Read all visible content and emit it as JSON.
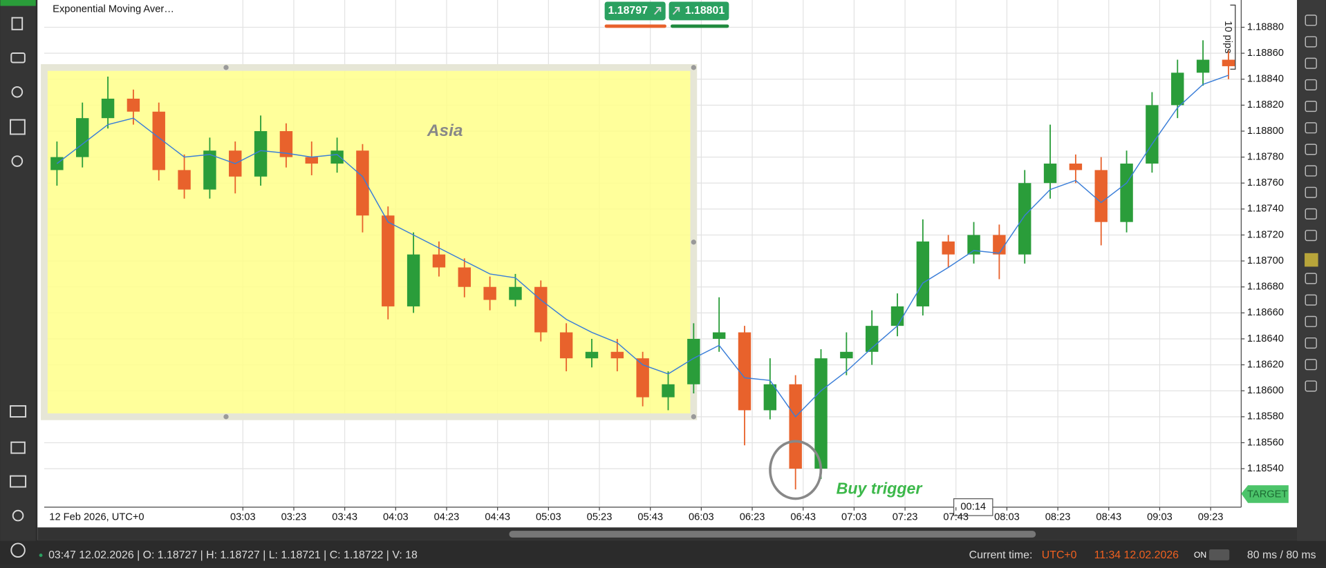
{
  "chart_data": {
    "type": "candlestick",
    "indicator_label": "Exponential Moving Aver…",
    "date_label": "12 Feb 2026, UTC+0",
    "x": [
      "01:50",
      "02:00",
      "02:10",
      "02:20",
      "02:30",
      "02:40",
      "02:50",
      "03:00",
      "03:10",
      "03:20",
      "03:30",
      "03:40",
      "03:50",
      "04:00",
      "04:10",
      "04:20",
      "04:30",
      "04:40",
      "04:50",
      "05:00",
      "05:10",
      "05:20",
      "05:30",
      "05:40",
      "05:50",
      "06:00",
      "06:10",
      "06:20",
      "06:30",
      "06:40",
      "06:50",
      "07:00",
      "07:10",
      "07:20",
      "07:30",
      "07:40",
      "07:50",
      "08:00",
      "08:10",
      "08:20",
      "08:30",
      "08:40",
      "08:50",
      "09:00",
      "09:10",
      "09:20",
      "09:30"
    ],
    "open": [
      1.1877,
      1.1878,
      1.1881,
      1.18825,
      1.18815,
      1.1877,
      1.18755,
      1.18785,
      1.18765,
      1.188,
      1.1878,
      1.18775,
      1.18785,
      1.18735,
      1.18665,
      1.18705,
      1.18695,
      1.1868,
      1.1867,
      1.1868,
      1.18645,
      1.18625,
      1.1863,
      1.18625,
      1.18595,
      1.18605,
      1.1864,
      1.18645,
      1.18585,
      1.18605,
      1.1854,
      1.18625,
      1.1863,
      1.1865,
      1.18665,
      1.18715,
      1.18705,
      1.1872,
      1.18705,
      1.1876,
      1.18775,
      1.1877,
      1.1873,
      1.18775,
      1.1882,
      1.18845,
      1.18855
    ],
    "high": [
      1.18792,
      1.18822,
      1.18842,
      1.18832,
      1.18822,
      1.18782,
      1.18795,
      1.18792,
      1.18812,
      1.18806,
      1.18792,
      1.18795,
      1.1879,
      1.18742,
      1.18722,
      1.18715,
      1.18702,
      1.18688,
      1.1869,
      1.18685,
      1.18652,
      1.1864,
      1.1864,
      1.1863,
      1.18615,
      1.18652,
      1.18672,
      1.1865,
      1.18625,
      1.18612,
      1.18632,
      1.18645,
      1.18662,
      1.18675,
      1.18732,
      1.1872,
      1.1873,
      1.18728,
      1.1877,
      1.18805,
      1.18782,
      1.1878,
      1.18785,
      1.1883,
      1.18855,
      1.1887,
      1.18862
    ],
    "low": [
      1.18758,
      1.18772,
      1.18802,
      1.18805,
      1.18762,
      1.18748,
      1.18748,
      1.18752,
      1.18758,
      1.18772,
      1.18766,
      1.18768,
      1.18722,
      1.18655,
      1.1866,
      1.18688,
      1.18672,
      1.18662,
      1.18665,
      1.18638,
      1.18615,
      1.18618,
      1.18615,
      1.18588,
      1.18585,
      1.18598,
      1.1863,
      1.18558,
      1.18578,
      1.18524,
      1.18532,
      1.18612,
      1.1862,
      1.18642,
      1.18658,
      1.18695,
      1.18698,
      1.18686,
      1.18698,
      1.18748,
      1.1876,
      1.18712,
      1.18722,
      1.18768,
      1.1881,
      1.18835,
      1.1884
    ],
    "close": [
      1.1878,
      1.1881,
      1.18825,
      1.18815,
      1.1877,
      1.18755,
      1.18785,
      1.18765,
      1.188,
      1.1878,
      1.18775,
      1.18785,
      1.18735,
      1.18665,
      1.18705,
      1.18695,
      1.1868,
      1.1867,
      1.1868,
      1.18645,
      1.18625,
      1.1863,
      1.18625,
      1.18595,
      1.18605,
      1.1864,
      1.18645,
      1.18585,
      1.18605,
      1.1854,
      1.18625,
      1.1863,
      1.1865,
      1.18665,
      1.18715,
      1.18705,
      1.1872,
      1.18705,
      1.1876,
      1.18775,
      1.1877,
      1.1873,
      1.18775,
      1.1882,
      1.18845,
      1.18855,
      1.1885
    ],
    "up_color": "#2a9d3a",
    "down_color": "#e8622c",
    "ema": {
      "color": "#3a7ed8",
      "values": [
        1.18775,
        1.1879,
        1.18805,
        1.1881,
        1.18795,
        1.1878,
        1.18782,
        1.18775,
        1.18785,
        1.18783,
        1.1878,
        1.18782,
        1.18765,
        1.1873,
        1.1872,
        1.1871,
        1.187,
        1.1869,
        1.18687,
        1.1867,
        1.18655,
        1.18645,
        1.18637,
        1.1862,
        1.18613,
        1.18625,
        1.18635,
        1.1861,
        1.18608,
        1.1858,
        1.186,
        1.18615,
        1.18633,
        1.1865,
        1.18683,
        1.18695,
        1.18708,
        1.18706,
        1.18735,
        1.18755,
        1.18762,
        1.18745,
        1.1876,
        1.1879,
        1.18818,
        1.18836,
        1.18843
      ]
    },
    "xlim": [
      "01:45",
      "09:35"
    ],
    "xticks": [
      "03:03",
      "03:23",
      "03:43",
      "04:03",
      "04:23",
      "04:43",
      "05:03",
      "05:23",
      "05:43",
      "06:03",
      "06:23",
      "06:43",
      "07:03",
      "07:23",
      "07:43",
      "08:03",
      "08:23",
      "08:43",
      "09:03",
      "09:23"
    ],
    "ylim": [
      1.18511,
      1.18901
    ],
    "yticks": [
      {
        "value": 1.1854,
        "label": "1.18540"
      },
      {
        "value": 1.1856,
        "label": "1.18560"
      },
      {
        "value": 1.1858,
        "label": "1.18580"
      },
      {
        "value": 1.186,
        "label": "1.18600"
      },
      {
        "value": 1.1862,
        "label": "1.18620"
      },
      {
        "value": 1.1864,
        "label": "1.18640"
      },
      {
        "value": 1.1866,
        "label": "1.18660"
      },
      {
        "value": 1.1868,
        "label": "1.18680"
      },
      {
        "value": 1.187,
        "label": "1.18700"
      },
      {
        "value": 1.1872,
        "label": "1.18720"
      },
      {
        "value": 1.1874,
        "label": "1.18740"
      },
      {
        "value": 1.1876,
        "label": "1.18760"
      },
      {
        "value": 1.1878,
        "label": "1.18780"
      },
      {
        "value": 1.188,
        "label": "1.18800"
      },
      {
        "value": 1.1882,
        "label": "1.18820"
      },
      {
        "value": 1.1884,
        "label": "1.18840"
      },
      {
        "value": 1.1886,
        "label": "1.18860"
      },
      {
        "value": 1.1888,
        "label": "1.18880"
      }
    ],
    "grid": true,
    "region": {
      "label": "Asia",
      "x": [
        "01:45",
        "06:00"
      ],
      "y": [
        1.1858,
        1.18849
      ]
    },
    "marker": {
      "x": "06:40",
      "y": 1.18539
    },
    "note": {
      "text": "Buy trigger",
      "x": "06:56",
      "y": 1.18524
    }
  },
  "toolbar": {
    "sell_price": 1.18797,
    "buy_price": 1.18801
  },
  "timer": "00:14",
  "target_label": "TARGET",
  "measure_label": "10 pips",
  "status_bar": {
    "ohlc": "03:47 12.02.2026 | O: 1.18727 | H: 1.18727 | L: 1.18721 | C: 1.18722 | V: 18",
    "time_label": "Current time:",
    "timezone": "UTC+0",
    "time": "11:34 12.02.2026",
    "toggle": "ON",
    "latency": "80 ms / 80 ms"
  }
}
